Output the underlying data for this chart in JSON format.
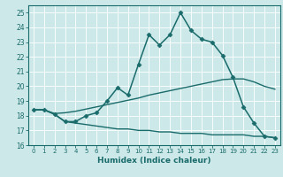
{
  "xlabel": "Humidex (Indice chaleur)",
  "background_color": "#cce8e8",
  "grid_color": "#ffffff",
  "line_color": "#1a6b6b",
  "xlim": [
    -0.5,
    23.5
  ],
  "ylim": [
    16,
    25.5
  ],
  "yticks": [
    16,
    17,
    18,
    19,
    20,
    21,
    22,
    23,
    24,
    25
  ],
  "xticks": [
    0,
    1,
    2,
    3,
    4,
    5,
    6,
    7,
    8,
    9,
    10,
    11,
    12,
    13,
    14,
    15,
    16,
    17,
    18,
    19,
    20,
    21,
    22,
    23
  ],
  "series": [
    {
      "x": [
        0,
        1,
        2,
        3,
        4,
        5,
        6,
        7,
        8,
        9,
        10,
        11,
        12,
        13,
        14,
        15,
        16,
        17,
        18,
        19,
        20,
        21,
        22,
        23
      ],
      "y": [
        18.4,
        18.4,
        18.1,
        17.6,
        17.6,
        18.0,
        18.2,
        19.0,
        19.9,
        19.4,
        21.5,
        23.5,
        22.8,
        23.5,
        25.0,
        23.8,
        23.2,
        23.0,
        22.1,
        20.6,
        18.6,
        17.5,
        16.6,
        16.5
      ],
      "marker": "D",
      "markersize": 2.5,
      "linewidth": 1.1
    },
    {
      "x": [
        0,
        1,
        2,
        3,
        4,
        5,
        6,
        7,
        8,
        9,
        10,
        11,
        12,
        13,
        14,
        15,
        16,
        17,
        18,
        19,
        20,
        21,
        22,
        23
      ],
      "y": [
        18.4,
        18.4,
        18.15,
        18.2,
        18.3,
        18.45,
        18.6,
        18.75,
        18.9,
        19.05,
        19.2,
        19.4,
        19.55,
        19.7,
        19.85,
        20.0,
        20.15,
        20.3,
        20.45,
        20.5,
        20.5,
        20.3,
        20.0,
        19.8
      ],
      "marker": null,
      "markersize": 0,
      "linewidth": 1.0
    },
    {
      "x": [
        0,
        1,
        2,
        3,
        4,
        5,
        6,
        7,
        8,
        9,
        10,
        11,
        12,
        13,
        14,
        15,
        16,
        17,
        18,
        19,
        20,
        21,
        22,
        23
      ],
      "y": [
        18.4,
        18.4,
        18.1,
        17.6,
        17.5,
        17.4,
        17.3,
        17.2,
        17.1,
        17.1,
        17.0,
        17.0,
        16.9,
        16.9,
        16.8,
        16.8,
        16.8,
        16.7,
        16.7,
        16.7,
        16.7,
        16.6,
        16.6,
        16.5
      ],
      "marker": null,
      "markersize": 0,
      "linewidth": 1.0
    }
  ]
}
